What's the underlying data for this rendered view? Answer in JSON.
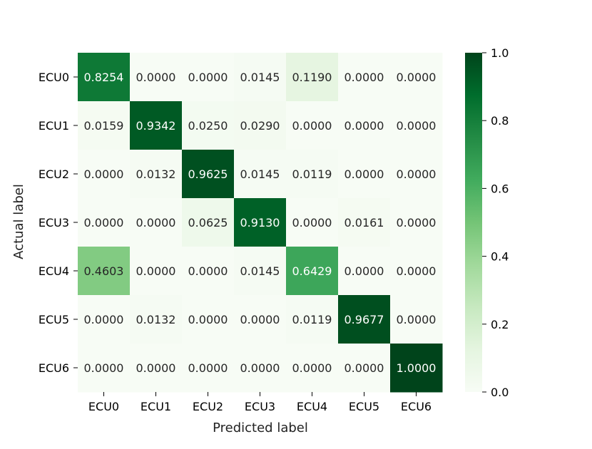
{
  "chart_data": {
    "type": "heatmap",
    "xlabel": "Predicted label",
    "ylabel": "Actual label",
    "x_categories": [
      "ECU0",
      "ECU1",
      "ECU2",
      "ECU3",
      "ECU4",
      "ECU5",
      "ECU6"
    ],
    "y_categories": [
      "ECU0",
      "ECU1",
      "ECU2",
      "ECU3",
      "ECU4",
      "ECU5",
      "ECU6"
    ],
    "values": [
      [
        0.8254,
        0.0,
        0.0,
        0.0145,
        0.119,
        0.0,
        0.0
      ],
      [
        0.0159,
        0.9342,
        0.025,
        0.029,
        0.0,
        0.0,
        0.0
      ],
      [
        0.0,
        0.0132,
        0.9625,
        0.0145,
        0.0119,
        0.0,
        0.0
      ],
      [
        0.0,
        0.0,
        0.0625,
        0.913,
        0.0,
        0.0161,
        0.0
      ],
      [
        0.4603,
        0.0,
        0.0,
        0.0145,
        0.6429,
        0.0,
        0.0
      ],
      [
        0.0,
        0.0132,
        0.0,
        0.0,
        0.0119,
        0.9677,
        0.0
      ],
      [
        0.0,
        0.0,
        0.0,
        0.0,
        0.0,
        0.0,
        1.0
      ]
    ],
    "value_format_decimals": 4,
    "colormap": "Greens",
    "color_range": [
      0.0,
      1.0
    ],
    "colorbar_ticks": [
      "0.0",
      "0.2",
      "0.4",
      "0.6",
      "0.8",
      "1.0"
    ],
    "colorbar_tick_values": [
      0.0,
      0.2,
      0.4,
      0.6,
      0.8,
      1.0
    ],
    "colors": {
      "low": "#f7fcf5",
      "high": "#00441b",
      "text_dark": "#262626",
      "text_light": "#ffffff"
    }
  }
}
